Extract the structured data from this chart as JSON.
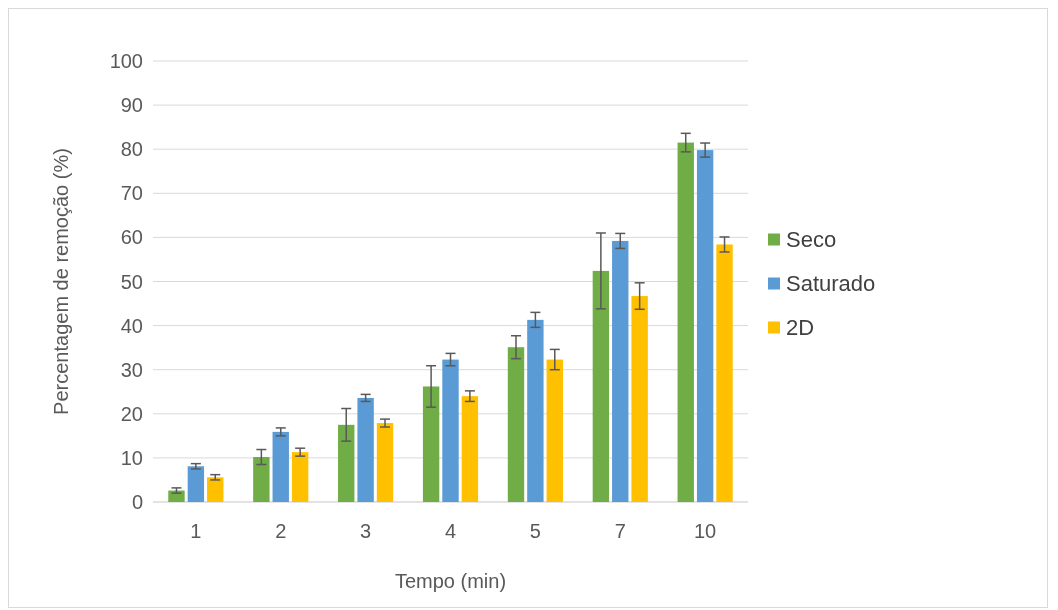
{
  "chart_data": {
    "type": "bar",
    "xlabel": "Tempo (min)",
    "ylabel": "Percentagem de remoção (%)",
    "categories": [
      "1",
      "2",
      "3",
      "4",
      "5",
      "7",
      "10"
    ],
    "series": [
      {
        "name": "Seco",
        "color": "#70ad47",
        "values": [
          2.6,
          10.2,
          17.5,
          26.2,
          35.1,
          52.4,
          81.5
        ],
        "errors": [
          0.6,
          1.7,
          3.7,
          4.7,
          2.6,
          8.6,
          2.1
        ]
      },
      {
        "name": "Saturado",
        "color": "#5b9bd5",
        "values": [
          8.1,
          15.9,
          23.6,
          32.3,
          41.3,
          59.2,
          79.8
        ],
        "errors": [
          0.6,
          0.9,
          0.8,
          1.4,
          1.7,
          1.7,
          1.6
        ]
      },
      {
        "name": "2D",
        "color": "#ffc000",
        "values": [
          5.6,
          11.3,
          17.9,
          24.0,
          32.3,
          46.7,
          58.4
        ],
        "errors": [
          0.6,
          0.9,
          0.9,
          1.2,
          2.3,
          3.0,
          1.7
        ]
      }
    ],
    "ylim": [
      0,
      100
    ],
    "yticks": [
      0,
      10,
      20,
      30,
      40,
      50,
      60,
      70,
      80,
      90,
      100
    ],
    "grid": "y",
    "legend": "right"
  }
}
